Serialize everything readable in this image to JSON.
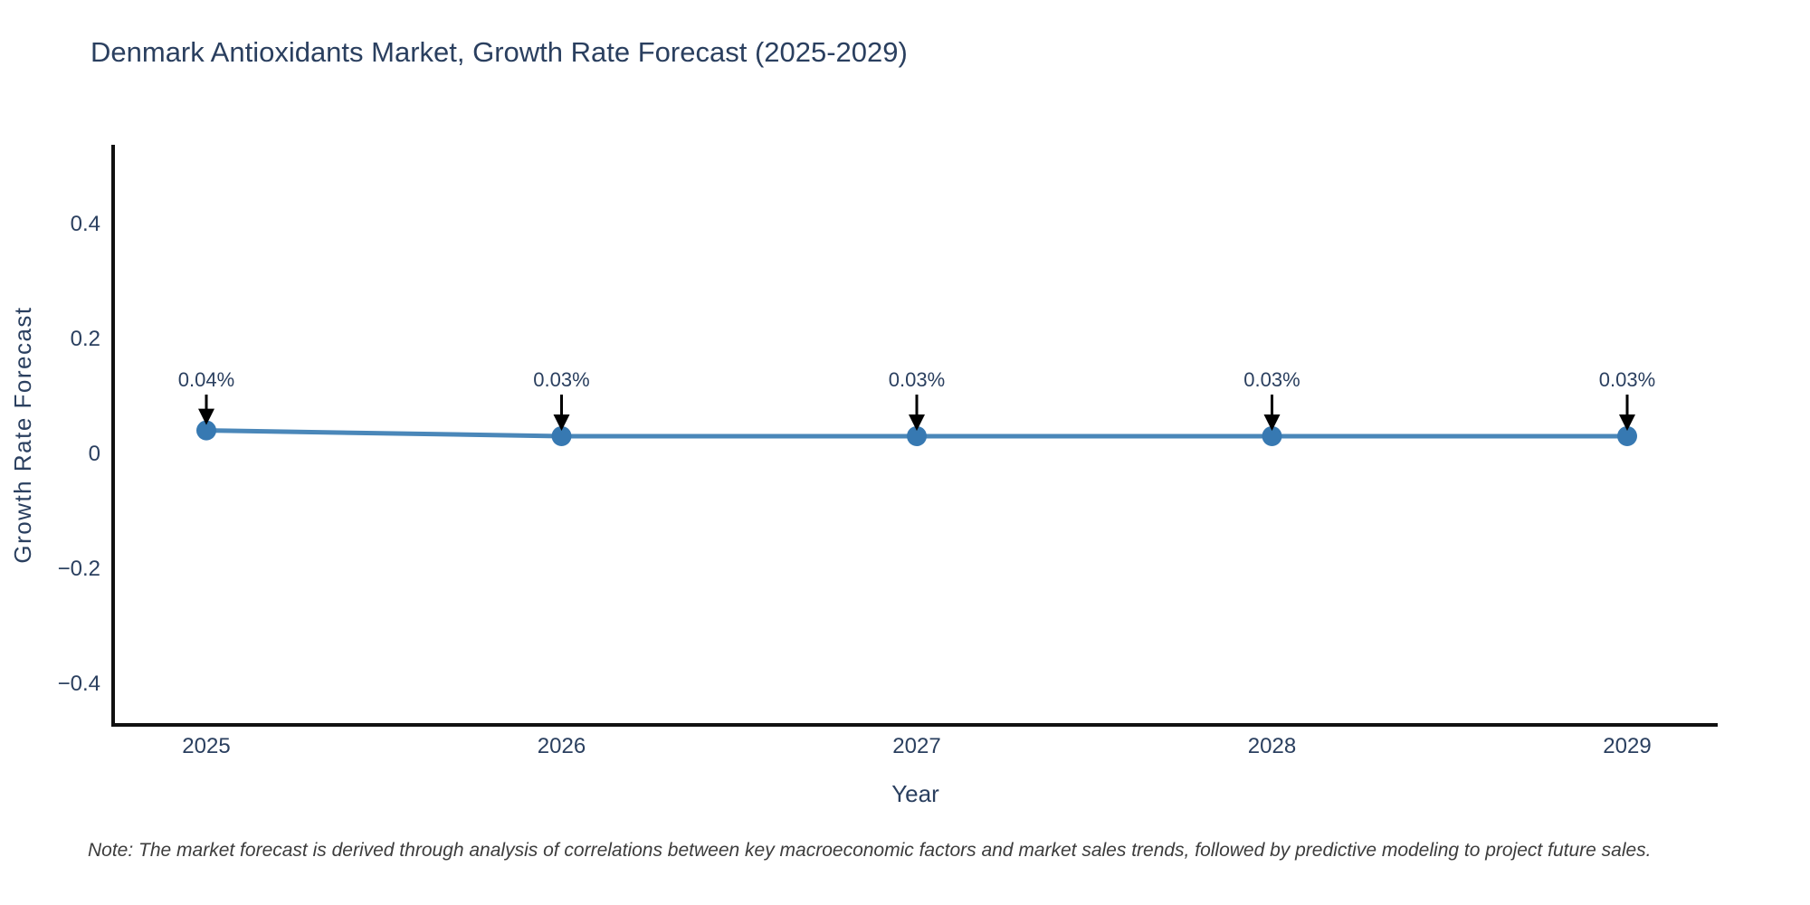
{
  "title": "Denmark Antioxidants Market, Growth Rate Forecast (2025-2029)",
  "note": "Note: The market forecast is derived through analysis of correlations between key macroeconomic factors and market sales trends, followed by predictive modeling to project future sales.",
  "colors": {
    "title_text": "#2a3f5f",
    "tick_label": "#2a3f5f",
    "axis_title": "#2a3f5f",
    "axis_line": "#111111",
    "series_line": "#4a87b9",
    "marker_fill": "#3779b2",
    "annotation_text": "#2a3f5f",
    "arrow": "#000000",
    "note_text": "#3c3c3c"
  },
  "chart_data": {
    "type": "line",
    "title": "Denmark Antioxidants Market, Growth Rate Forecast (2025-2029)",
    "xlabel": "Year",
    "ylabel": "Growth Rate Forecast",
    "x": [
      2025,
      2026,
      2027,
      2028,
      2029
    ],
    "xtick_labels": [
      "2025",
      "2026",
      "2027",
      "2028",
      "2029"
    ],
    "values": [
      0.04,
      0.03,
      0.03,
      0.03,
      0.03
    ],
    "point_labels": [
      "0.04%",
      "0.03%",
      "0.03%",
      "0.03%",
      "0.03%"
    ],
    "yticks": [
      0.4,
      0.2,
      0,
      -0.2,
      -0.4
    ],
    "ytick_labels": [
      "0.4",
      "0.2",
      "0",
      "−0.2",
      "−0.4"
    ],
    "ylim": [
      -0.47,
      0.54
    ],
    "grid": false,
    "legend_position": "none",
    "series_name": "Growth Rate Forecast"
  }
}
